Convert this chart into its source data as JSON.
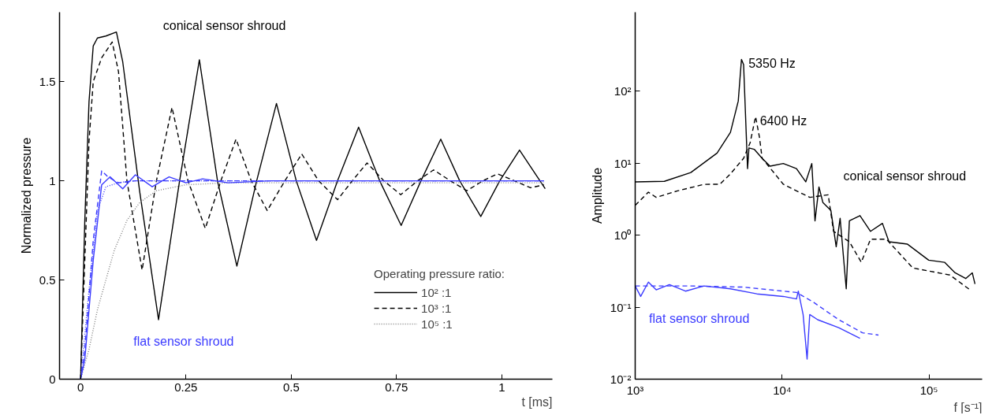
{
  "chart_data": [
    {
      "type": "line",
      "xlabel": "t [ms]",
      "ylabel": "Normalized pressure",
      "legend_title": "Operating pressure ratio:",
      "legend": "bottom right",
      "grid": false,
      "marker": "none",
      "xlim": [
        -0.05,
        1.12
      ],
      "ylim": [
        0,
        1.85
      ],
      "xticks": [
        0,
        0.25,
        0.5,
        0.75,
        1
      ],
      "yticks": [
        0,
        0.5,
        1,
        1.5
      ],
      "annotations": [
        "conical sensor shroud",
        "flat sensor shroud"
      ],
      "series": [
        {
          "name": "10² :1",
          "color": "#000000",
          "line_style": "solid",
          "x": [
            0,
            0.01,
            0.02,
            0.03,
            0.04,
            0.06,
            0.085,
            0.1,
            0.14,
            0.185,
            0.235,
            0.282,
            0.325,
            0.371,
            0.418,
            0.465,
            0.512,
            0.56,
            0.61,
            0.66,
            0.71,
            0.761,
            0.808,
            0.855,
            0.9,
            0.95,
            0.995,
            1.042,
            1.103
          ],
          "values": [
            0,
            0.8,
            1.4,
            1.68,
            1.72,
            1.73,
            1.75,
            1.6,
            0.95,
            0.3,
            1.0,
            1.61,
            1.0,
            0.57,
            1.0,
            1.39,
            1.0,
            0.7,
            1.0,
            1.27,
            1.0,
            0.775,
            1.0,
            1.21,
            1.0,
            0.82,
            1.0,
            1.155,
            0.96
          ]
        },
        {
          "name": "10³ :1",
          "color": "#000000",
          "line_style": "dashed",
          "x": [
            0,
            0.01,
            0.02,
            0.03,
            0.05,
            0.075,
            0.09,
            0.11,
            0.146,
            0.18,
            0.217,
            0.255,
            0.296,
            0.333,
            0.369,
            0.405,
            0.443,
            0.485,
            0.525,
            0.565,
            0.61,
            0.645,
            0.68,
            0.72,
            0.76,
            0.8,
            0.838,
            0.878,
            0.917,
            0.955,
            0.99,
            1.03,
            1.068,
            1.1
          ],
          "values": [
            0,
            0.6,
            1.2,
            1.5,
            1.62,
            1.7,
            1.55,
            1.0,
            0.55,
            1.0,
            1.37,
            1.0,
            0.76,
            1.0,
            1.21,
            1.0,
            0.85,
            1.0,
            1.135,
            1.0,
            0.905,
            1.0,
            1.09,
            1.0,
            0.93,
            1.0,
            1.055,
            1.0,
            0.95,
            1.0,
            1.035,
            1.0,
            0.965,
            0.98
          ]
        },
        {
          "name": "10⁵ :1",
          "color": "#808080",
          "line_style": "dotted",
          "x": [
            0,
            0.02,
            0.04,
            0.06,
            0.08,
            0.11,
            0.14,
            0.18,
            0.25,
            0.35,
            0.5,
            1.1
          ],
          "values": [
            0,
            0.15,
            0.35,
            0.5,
            0.65,
            0.8,
            0.89,
            0.95,
            0.98,
            0.99,
            0.99,
            0.99
          ]
        },
        {
          "color": "#3b3bff",
          "line_style": "solid",
          "x": [
            0,
            0.01,
            0.03,
            0.05,
            0.07,
            0.1,
            0.13,
            0.17,
            0.21,
            0.25,
            0.29,
            0.35,
            0.45,
            0.6,
            0.8,
            1.1
          ],
          "values": [
            0,
            0.1,
            0.6,
            0.98,
            1.02,
            0.96,
            1.03,
            0.97,
            1.02,
            0.99,
            1.01,
            0.99,
            1.0,
            1.0,
            1.0,
            1.0
          ]
        },
        {
          "color": "#3b3bff",
          "line_style": "dashed",
          "x": [
            0,
            0.01,
            0.03,
            0.05,
            0.065,
            0.09,
            0.13,
            0.2,
            0.4,
            0.7,
            1.1
          ],
          "values": [
            0,
            0.15,
            0.7,
            1.05,
            1.02,
            0.99,
            1.0,
            1.0,
            1.0,
            1.0,
            1.0
          ]
        },
        {
          "color": "#3b3bff",
          "line_style": "dotted",
          "x": [
            0,
            0.02,
            0.04,
            0.06,
            0.09,
            0.12,
            0.2,
            0.5,
            1.1
          ],
          "values": [
            0,
            0.45,
            0.85,
            0.97,
            0.99,
            1.0,
            1.0,
            1.0,
            1.0
          ]
        }
      ]
    },
    {
      "type": "line",
      "xlabel": "f [s⁻¹]",
      "ylabel": "Amplitude",
      "log": "xy",
      "grid": false,
      "marker": "none",
      "xlim": [
        1000,
        230000
      ],
      "ylim": [
        0.01,
        1250
      ],
      "xticks": [
        {
          "value": 1000,
          "label": "10³"
        },
        {
          "value": 10000,
          "label": "10⁴"
        },
        {
          "value": 100000,
          "label": "10⁵"
        }
      ],
      "yticks": [
        {
          "value": 0.01,
          "label": "10⁻²"
        },
        {
          "value": 0.1,
          "label": "10⁻¹"
        },
        {
          "value": 1,
          "label": "10⁰"
        },
        {
          "value": 10,
          "label": "10¹"
        },
        {
          "value": 100,
          "label": "10²"
        }
      ],
      "annotations": [
        {
          "text": "5350 Hz",
          "x": 5350,
          "y": 276
        },
        {
          "text": "6400 Hz",
          "x": 6400,
          "y": 44
        },
        "conical sensor shroud",
        "flat sensor shroud"
      ],
      "series": [
        {
          "color": "#000000",
          "line_style": "solid",
          "x": [
            1000,
            1580,
            2390,
            3610,
            4450,
            5030,
            5290,
            5470,
            5820,
            5950,
            6460,
            7310,
            8280,
            10190,
            12530,
            14490,
            15930,
            16750,
            17820,
            18970,
            21480,
            23350,
            24830,
            27330,
            28710,
            33900,
            40000,
            48200,
            53400,
            71400,
            99500,
            127600,
            150600,
            177800,
            197000,
            205600
          ],
          "values": [
            5.5,
            5.6,
            7.4,
            13.8,
            26.8,
            72.8,
            276,
            234,
            8.4,
            16.3,
            15.6,
            11.7,
            9.1,
            9.9,
            8.4,
            5.5,
            9.9,
            1.58,
            4.67,
            2.83,
            2.21,
            0.69,
            1.72,
            0.18,
            1.58,
            1.87,
            1.13,
            1.46,
            0.81,
            0.75,
            0.45,
            0.42,
            0.3,
            0.25,
            0.3,
            0.21
          ]
        },
        {
          "color": "#000000",
          "line_style": "dashed",
          "x": [
            1000,
            1230,
            1390,
            1940,
            2940,
            3770,
            4450,
            5470,
            6060,
            6600,
            7020,
            7310,
            10190,
            15420,
            20600,
            22400,
            28710,
            34600,
            40000,
            51300,
            77600,
            138700,
            193200
          ],
          "values": [
            2.6,
            3.96,
            3.35,
            4.12,
            5.08,
            5.1,
            7.1,
            11.7,
            19.2,
            44.3,
            22.7,
            11.7,
            5.1,
            3.35,
            3.64,
            1.13,
            0.81,
            0.42,
            0.88,
            0.88,
            0.35,
            0.28,
            0.17
          ]
        },
        {
          "color": "#3b3bff",
          "line_style": "solid",
          "x": [
            1000,
            1090,
            1230,
            1390,
            1710,
            2200,
            2940,
            4450,
            6730,
            10190,
            12530,
            12900,
            13900,
            14800,
            15420,
            17470,
            24300,
            33900
          ],
          "values": [
            0.197,
            0.141,
            0.223,
            0.174,
            0.206,
            0.167,
            0.197,
            0.18,
            0.153,
            0.141,
            0.13,
            0.167,
            0.079,
            0.019,
            0.079,
            0.067,
            0.052,
            0.037
          ]
        },
        {
          "color": "#3b3bff",
          "line_style": "dashed",
          "x": [
            1000,
            2390,
            5470,
            12530,
            16070,
            24300,
            35300,
            45300
          ],
          "values": [
            0.197,
            0.197,
            0.19,
            0.16,
            0.12,
            0.067,
            0.044,
            0.041
          ]
        }
      ]
    }
  ]
}
